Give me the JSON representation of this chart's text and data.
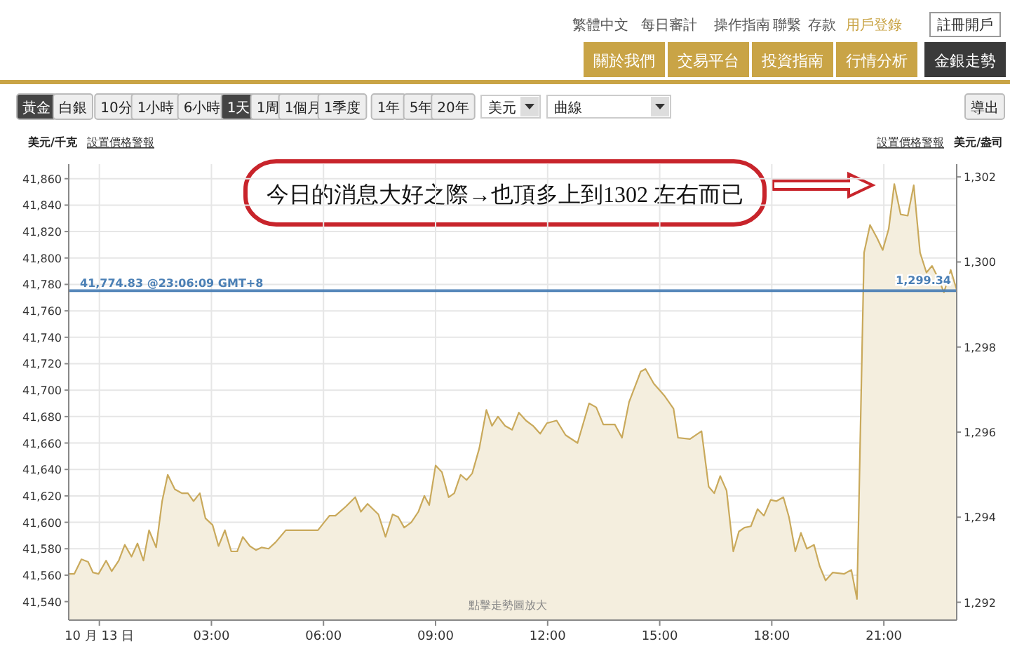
{
  "chart_data": {
    "type": "area",
    "ylabel": "美元/千克",
    "y2label": "美元/盎司",
    "annotations": [
      "今日的消息大好之際→也頂多上到1302 左右而已",
      "點擊走勢圖放大",
      "設置價格警報",
      "設置價格警報",
      "黃金",
      "白銀",
      "10分",
      "1小時",
      "6小時",
      "1天",
      "1周",
      "1個月",
      "1季度",
      "1年",
      "5年",
      "20年",
      "美元",
      "曲線",
      "導出",
      "繁體中文",
      "每日審計",
      "操作指南",
      "聯繫",
      "存款",
      "用戶登錄",
      "註冊開戶",
      "關於我們",
      "交易平台",
      "投資指南",
      "行情分析",
      "金銀走勢"
    ],
    "x": [
      -0.8,
      -0.67,
      -0.48,
      -0.3,
      -0.17,
      -0.02,
      0.18,
      0.33,
      0.52,
      0.68,
      0.86,
      1.02,
      1.18,
      1.33,
      1.52,
      1.68,
      1.83,
      2.02,
      2.21,
      2.37,
      2.52,
      2.69,
      2.84,
      3.03,
      3.19,
      3.36,
      3.53,
      3.69,
      3.84,
      4.03,
      4.19,
      4.34,
      4.53,
      4.72,
      4.99,
      5.85,
      6.16,
      6.32,
      6.6,
      6.85,
      7.0,
      7.18,
      7.47,
      7.66,
      7.85,
      8.0,
      8.16,
      8.35,
      8.54,
      8.7,
      8.83,
      9.0,
      9.17,
      9.35,
      9.5,
      9.67,
      9.83,
      9.98,
      10.17,
      10.36,
      10.51,
      10.67,
      10.86,
      11.05,
      11.23,
      11.42,
      11.61,
      11.8,
      11.98,
      12.24,
      12.48,
      12.8,
      13.11,
      13.3,
      13.49,
      13.8,
      13.99,
      14.18,
      14.49,
      14.62,
      14.84,
      15.12,
      15.37,
      15.49,
      15.81,
      16.12,
      16.31,
      16.46,
      16.62,
      16.79,
      16.97,
      17.12,
      17.27,
      17.44,
      17.62,
      17.79,
      17.97,
      18.12,
      18.31,
      18.46,
      18.63,
      18.78,
      18.94,
      19.13,
      19.28,
      19.44,
      19.63,
      19.94,
      20.13,
      20.28,
      20.47,
      20.63,
      20.82,
      20.97,
      21.13,
      21.28,
      21.45,
      21.64,
      21.8,
      21.97,
      22.14,
      22.29,
      22.45,
      22.61,
      22.79,
      22.95
    ],
    "series": [
      {
        "color": "#c9a95b",
        "values": [
          41561,
          41561,
          41572,
          41570,
          41562,
          41561,
          41571,
          41563,
          41571,
          41583,
          41574,
          41584,
          41571,
          41594,
          41581,
          41616,
          41636,
          41625,
          41622,
          41622,
          41616,
          41622,
          41603,
          41598,
          41582,
          41594,
          41578,
          41578,
          41589,
          41582,
          41579,
          41581,
          41580,
          41585,
          41594,
          41594,
          41605,
          41605,
          41612,
          41619,
          41608,
          41614,
          41606,
          41589,
          41606,
          41604,
          41596,
          41600,
          41608,
          41620,
          41613,
          41643,
          41638,
          41619,
          41622,
          41636,
          41632,
          41637,
          41656,
          41685,
          41673,
          41680,
          41673,
          41670,
          41683,
          41677,
          41673,
          41667,
          41675,
          41677,
          41666,
          41660,
          41690,
          41687,
          41674,
          41674,
          41664,
          41691,
          41714,
          41716,
          41705,
          41696,
          41686,
          41664,
          41663,
          41669,
          41627,
          41622,
          41635,
          41624,
          41578,
          41593,
          41596,
          41597,
          41610,
          41605,
          41617,
          41616,
          41619,
          41604,
          41578,
          41592,
          41580,
          41583,
          41567,
          41556,
          41562,
          41561,
          41564,
          41542,
          41804,
          41825,
          41815,
          41806,
          41822,
          41856,
          41833,
          41832,
          41855,
          41804,
          41789,
          41794,
          41785,
          41774,
          41791,
          41776
        ]
      }
    ],
    "xlim": [
      -0.82,
      22.95
    ],
    "xticks": [
      {
        "value": 0,
        "label": "10 月 13 日"
      },
      {
        "value": 3,
        "label": "03:00"
      },
      {
        "value": 6,
        "label": "06:00"
      },
      {
        "value": 9,
        "label": "09:00"
      },
      {
        "value": 12,
        "label": "12:00"
      },
      {
        "value": 15,
        "label": "15:00"
      },
      {
        "value": 18,
        "label": "18:00"
      },
      {
        "value": 21,
        "label": "21:00"
      }
    ],
    "ylim": [
      41526,
      41871
    ],
    "yticks": [
      {
        "value": 41540,
        "label": "41,540"
      },
      {
        "value": 41560,
        "label": "41,560"
      },
      {
        "value": 41580,
        "label": "41,580"
      },
      {
        "value": 41600,
        "label": "41,600"
      },
      {
        "value": 41620,
        "label": "41,620"
      },
      {
        "value": 41640,
        "label": "41,640"
      },
      {
        "value": 41660,
        "label": "41,660"
      },
      {
        "value": 41680,
        "label": "41,680"
      },
      {
        "value": 41700,
        "label": "41,700"
      },
      {
        "value": 41720,
        "label": "41,720"
      },
      {
        "value": 41740,
        "label": "41,740"
      },
      {
        "value": 41760,
        "label": "41,760"
      },
      {
        "value": 41780,
        "label": "41,780"
      },
      {
        "value": 41800,
        "label": "41,800"
      },
      {
        "value": 41820,
        "label": "41,820"
      },
      {
        "value": 41840,
        "label": "41,840"
      },
      {
        "value": 41860,
        "label": "41,860"
      }
    ],
    "y2lim": [
      1291.58,
      1302.3
    ],
    "y2ticks": [
      {
        "value": 1292,
        "label": "1,292"
      },
      {
        "value": 1294,
        "label": "1,294"
      },
      {
        "value": 1296,
        "label": "1,296"
      },
      {
        "value": 1298,
        "label": "1,298"
      },
      {
        "value": 1300,
        "label": "1,300"
      },
      {
        "value": 1302,
        "label": "1,302"
      }
    ],
    "ref_lines": [
      {
        "axis": "y",
        "value": 41774.83,
        "label": "41,774.83 @23:06:09 GMT+8",
        "color": "#4a7fb5"
      },
      {
        "axis": "y2",
        "value": 1299.34,
        "label": "1,299.34",
        "color": "#4a7fb5"
      }
    ],
    "grid": true
  }
}
